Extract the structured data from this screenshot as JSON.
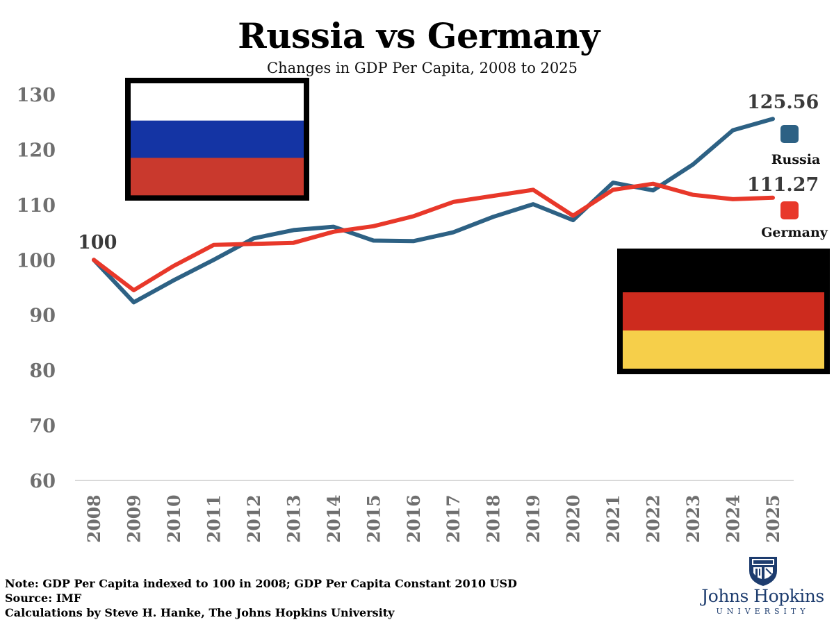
{
  "title": "Russia vs Germany",
  "subtitle": "Changes in GDP Per Capita, 2008 to 2025",
  "notes": [
    "Note: GDP Per Capita indexed to 100 in 2008; GDP Per Capita Constant 2010 USD",
    "Source: IMF",
    "Calculations by Steve H. Hanke, The Johns Hopkins University"
  ],
  "logo": {
    "name": "Johns Hopkins",
    "sub": "UNIVERSITY",
    "color": "#1d3c6e"
  },
  "colors": {
    "russia_line": "#2d6184",
    "germany_line": "#e8382a",
    "axis_text": "#6f6f6f",
    "axis_line": "#d9d9d9"
  },
  "flags": {
    "russia": [
      "#ffffff",
      "#1434a4",
      "#c9392d"
    ],
    "germany": [
      "#000000",
      "#cd2b1e",
      "#f6cf4a"
    ]
  },
  "chart_data": {
    "type": "line",
    "x": [
      2008,
      2009,
      2010,
      2011,
      2012,
      2013,
      2014,
      2015,
      2016,
      2017,
      2018,
      2019,
      2020,
      2021,
      2022,
      2023,
      2024,
      2025
    ],
    "series": [
      {
        "name": "Russia",
        "color": "#2d6184",
        "values": [
          100,
          92.3,
          96.3,
          100.0,
          103.9,
          105.4,
          106.0,
          103.5,
          103.4,
          105.0,
          107.8,
          110.1,
          107.2,
          114.0,
          112.6,
          117.3,
          123.5,
          125.56
        ]
      },
      {
        "name": "Germany",
        "color": "#e8382a",
        "values": [
          100,
          94.5,
          98.9,
          102.7,
          102.9,
          103.1,
          105.1,
          106.1,
          107.9,
          110.5,
          111.6,
          112.7,
          108.0,
          112.7,
          113.8,
          111.8,
          111.0,
          111.27
        ]
      }
    ],
    "annotations": {
      "start": "100",
      "russia_end": "125.56",
      "germany_end": "111.27"
    },
    "ylim": [
      60,
      130
    ],
    "yticks": [
      "60",
      "70",
      "80",
      "90",
      "100",
      "110",
      "120",
      "130"
    ],
    "xticks": [
      "2008",
      "2009",
      "2010",
      "2011",
      "2012",
      "2013",
      "2014",
      "2015",
      "2016",
      "2017",
      "2018",
      "2019",
      "2020",
      "2021",
      "2022",
      "2023",
      "2024",
      "2025"
    ],
    "grid": false,
    "legend": "right"
  }
}
